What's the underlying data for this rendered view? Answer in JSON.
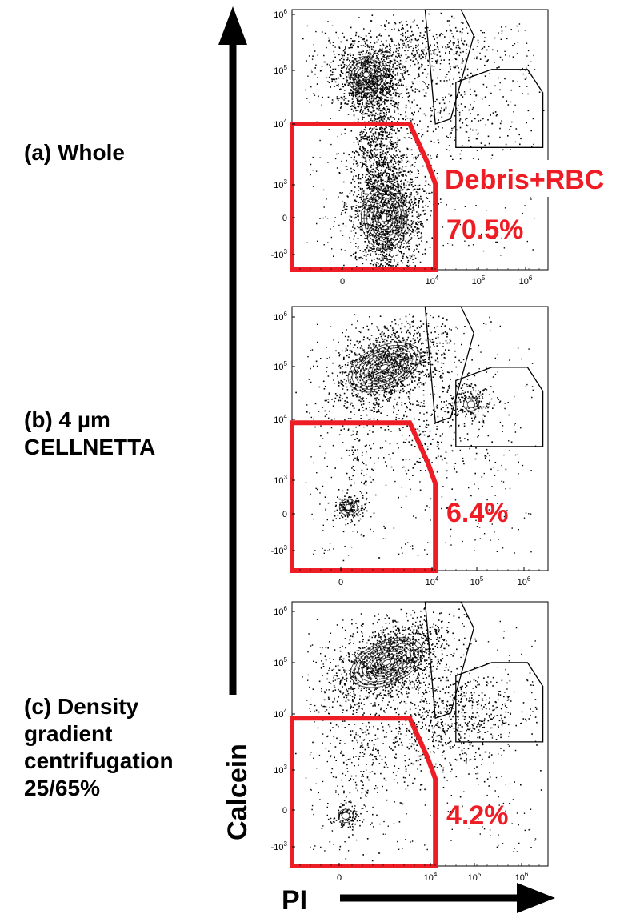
{
  "panels": [
    {
      "label": "(a) Whole",
      "percent": "70.5%",
      "gate_label": "Debris+RBC"
    },
    {
      "label": "(b) 4 µm\nCELLNETTA",
      "percent": "6.4%",
      "gate_label": ""
    },
    {
      "label": "(c) Density\ngradient\ncentrifugation\n25/65%",
      "percent": "4.2%",
      "gate_label": ""
    }
  ],
  "axes": {
    "y_title": "Calcein",
    "x_title": "PI"
  },
  "tick_labels": {
    "zero": "0",
    "base": "10",
    "pos_exps": [
      "3",
      "4",
      "5",
      "6"
    ],
    "neg": "-10",
    "neg_exp": "3"
  },
  "colors": {
    "gate": "#ee1c25",
    "text_highlight": "#ee1c25",
    "ink": "#000000"
  },
  "chart_data": [
    {
      "type": "scatter",
      "title": "(a) Whole",
      "xlabel": "PI",
      "ylabel": "Calcein",
      "x_scale": "biexponential",
      "y_scale": "biexponential",
      "xlim": [
        -1000,
        1000000
      ],
      "ylim": [
        -1000,
        1000000
      ],
      "gates": [
        {
          "name": "Debris+RBC",
          "percent": 70.5
        }
      ],
      "populations": [
        {
          "x": 0,
          "y": 80000,
          "weight": 0.3
        },
        {
          "x": 0,
          "y": 0,
          "weight": 0.55
        },
        {
          "x": 100000,
          "y": 15000,
          "weight": 0.08
        }
      ]
    },
    {
      "type": "scatter",
      "title": "(b) 4 µm CELLNETTA",
      "xlabel": "PI",
      "ylabel": "Calcein",
      "x_scale": "biexponential",
      "y_scale": "biexponential",
      "xlim": [
        -1000,
        1000000
      ],
      "ylim": [
        -1000,
        1000000
      ],
      "gates": [
        {
          "name": "",
          "percent": 6.4
        }
      ],
      "populations": [
        {
          "x": 300,
          "y": 80000,
          "weight": 0.7
        },
        {
          "x": 100000,
          "y": 20000,
          "weight": 0.12
        },
        {
          "x": 0,
          "y": 0,
          "weight": 0.06
        }
      ]
    },
    {
      "type": "scatter",
      "title": "(c) Density gradient centrifugation 25/65%",
      "xlabel": "PI",
      "ylabel": "Calcein",
      "x_scale": "biexponential",
      "y_scale": "biexponential",
      "xlim": [
        -1000,
        1000000
      ],
      "ylim": [
        -1000,
        1000000
      ],
      "gates": [
        {
          "name": "",
          "percent": 4.2
        }
      ],
      "populations": [
        {
          "x": 300,
          "y": 80000,
          "weight": 0.7
        },
        {
          "x": 100000,
          "y": 15000,
          "weight": 0.14
        },
        {
          "x": 0,
          "y": 0,
          "weight": 0.04
        }
      ]
    }
  ]
}
